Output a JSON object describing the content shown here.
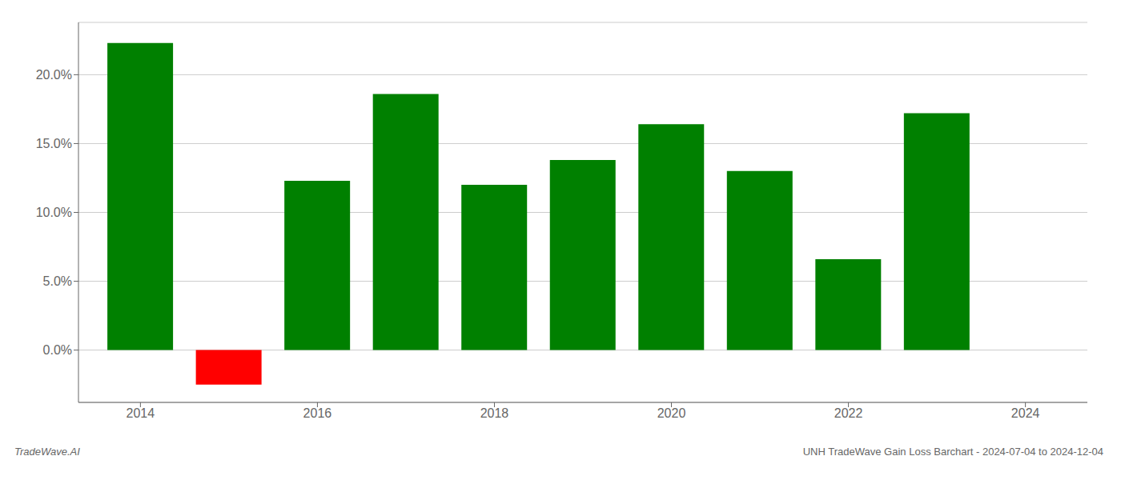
{
  "chart_data": {
    "type": "bar",
    "x": [
      2014,
      2015,
      2016,
      2017,
      2018,
      2019,
      2020,
      2021,
      2022,
      2023
    ],
    "values": [
      0.223,
      -0.025,
      0.123,
      0.186,
      0.12,
      0.138,
      0.164,
      0.13,
      0.066,
      0.172
    ],
    "colors": [
      "#008000",
      "#ff0000",
      "#008000",
      "#008000",
      "#008000",
      "#008000",
      "#008000",
      "#008000",
      "#008000",
      "#008000"
    ],
    "xlim": [
      2013.3,
      2024.7
    ],
    "xticks": [
      2014,
      2016,
      2018,
      2020,
      2022,
      2024
    ],
    "ylim": [
      -0.038,
      0.238
    ],
    "yticks": [
      {
        "value": 0.0,
        "label": "0.0%"
      },
      {
        "value": 0.05,
        "label": "5.0%"
      },
      {
        "value": 0.1,
        "label": "10.0%"
      },
      {
        "value": 0.15,
        "label": "15.0%"
      },
      {
        "value": 0.2,
        "label": "20.0%"
      }
    ],
    "grid": "y",
    "annotations": [
      "TradeWave.AI",
      "UNH TradeWave Gain Loss Barchart - 2024-07-04 to 2024-12-04"
    ]
  }
}
